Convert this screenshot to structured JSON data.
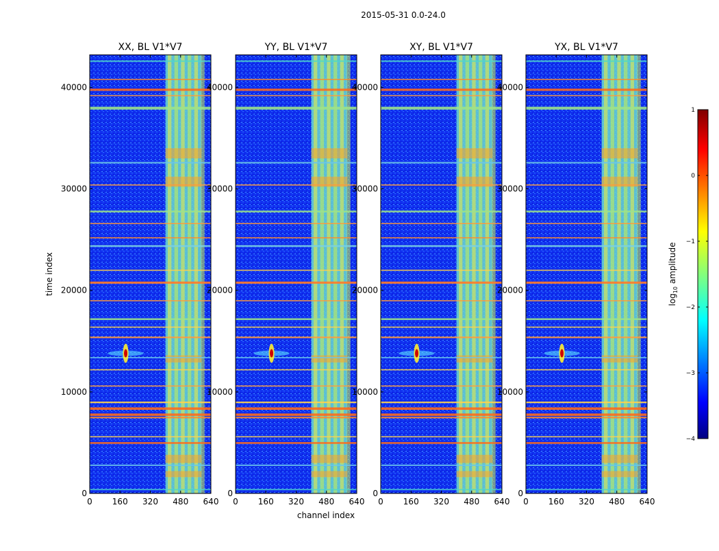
{
  "figure": {
    "suptitle": "2015-05-31 0.0-24.0",
    "xlabel": "channel index",
    "ylabel": "time index"
  },
  "chart_data": [
    {
      "type": "heatmap",
      "title": "XX, BL V1*V7",
      "xlim": [
        0,
        640
      ],
      "ylim": [
        0,
        43200
      ],
      "xticks": [
        0,
        160,
        320,
        480,
        640
      ],
      "yticks": [
        0,
        10000,
        20000,
        30000,
        40000
      ]
    },
    {
      "type": "heatmap",
      "title": "YY, BL V1*V7",
      "xlim": [
        0,
        640
      ],
      "ylim": [
        0,
        43200
      ],
      "xticks": [
        0,
        160,
        320,
        480,
        640
      ],
      "yticks": [
        0,
        10000,
        20000,
        30000,
        40000
      ]
    },
    {
      "type": "heatmap",
      "title": "XY, BL V1*V7",
      "xlim": [
        0,
        640
      ],
      "ylim": [
        0,
        43200
      ],
      "xticks": [
        0,
        160,
        320,
        480,
        640
      ],
      "yticks": [
        0,
        10000,
        20000,
        30000,
        40000
      ]
    },
    {
      "type": "heatmap",
      "title": "YX, BL V1*V7",
      "xlim": [
        0,
        640
      ],
      "ylim": [
        0,
        43200
      ],
      "xticks": [
        0,
        160,
        320,
        480,
        640
      ],
      "yticks": [
        0,
        10000,
        20000,
        30000,
        40000
      ]
    }
  ],
  "colorbar": {
    "label_prefix": "log",
    "label_sub": "10",
    "label_suffix": " amplitude",
    "range": [
      -4,
      1
    ],
    "ticks": [
      1,
      0,
      -1,
      -2,
      -3,
      -4
    ],
    "tick_labels": [
      "1",
      "0",
      "−1",
      "−2",
      "−3",
      "−4"
    ],
    "colormap": "jet",
    "colors": [
      "#000080",
      "#0000ff",
      "#00ffff",
      "#ffff00",
      "#ff0000",
      "#800000"
    ]
  }
}
